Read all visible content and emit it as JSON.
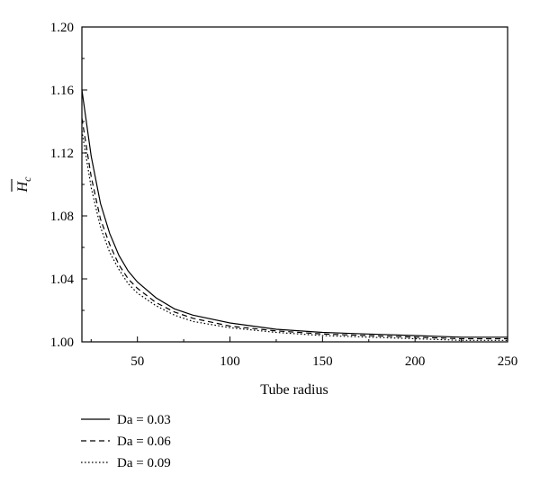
{
  "chart_data": {
    "type": "line",
    "title": "",
    "xlabel": "Tube radius",
    "ylabel": "H",
    "ylabel_subscript": "c",
    "xlim": [
      20,
      250
    ],
    "ylim": [
      1.0,
      1.2
    ],
    "x_ticks": [
      50,
      100,
      150,
      200,
      250
    ],
    "y_ticks": [
      1.0,
      1.04,
      1.08,
      1.12,
      1.16,
      1.2
    ],
    "y_tick_labels": [
      "1.00",
      "1.04",
      "1.08",
      "1.12",
      "1.16",
      "1.20"
    ],
    "x_tick_labels": [
      "50",
      "100",
      "150",
      "200",
      "250"
    ],
    "grid": false,
    "legend_position": "bottom-left, below plot",
    "series": [
      {
        "name": "Da = 0.03",
        "style": "solid",
        "x": [
          20,
          25,
          30,
          35,
          40,
          45,
          50,
          60,
          70,
          80,
          100,
          125,
          150,
          175,
          200,
          225,
          250
        ],
        "y": [
          1.16,
          1.118,
          1.088,
          1.069,
          1.055,
          1.045,
          1.038,
          1.028,
          1.021,
          1.017,
          1.012,
          1.008,
          1.006,
          1.005,
          1.004,
          1.003,
          1.003
        ]
      },
      {
        "name": "Da = 0.06",
        "style": "dashed",
        "x": [
          20,
          25,
          30,
          35,
          40,
          45,
          50,
          60,
          70,
          80,
          100,
          125,
          150,
          175,
          200,
          225,
          250
        ],
        "y": [
          1.142,
          1.105,
          1.078,
          1.062,
          1.049,
          1.04,
          1.034,
          1.025,
          1.019,
          1.015,
          1.01,
          1.007,
          1.005,
          1.004,
          1.003,
          1.002,
          1.002
        ]
      },
      {
        "name": "Da = 0.09",
        "style": "dotted",
        "x": [
          20,
          25,
          30,
          35,
          40,
          45,
          50,
          60,
          70,
          80,
          100,
          125,
          150,
          175,
          200,
          225,
          250
        ],
        "y": [
          1.134,
          1.098,
          1.073,
          1.057,
          1.046,
          1.037,
          1.031,
          1.023,
          1.017,
          1.013,
          1.009,
          1.006,
          1.004,
          1.003,
          1.002,
          1.001,
          1.001
        ]
      }
    ]
  }
}
